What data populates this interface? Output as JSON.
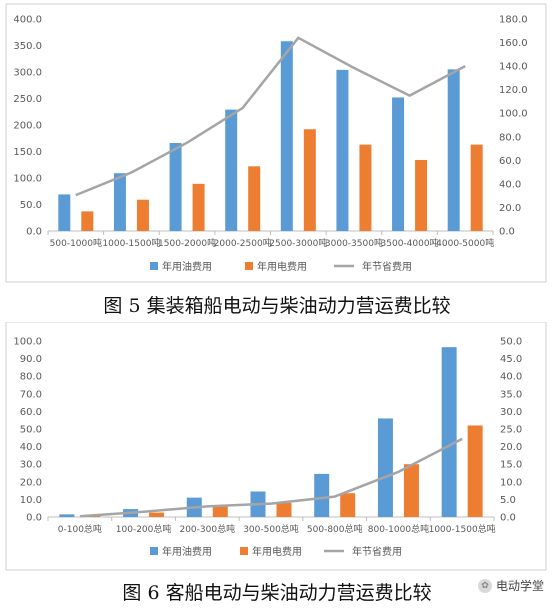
{
  "figure1": {
    "caption": "图 5  集装箱船电动与柴油动力营运费比较",
    "chart_data": {
      "type": "bar",
      "categories": [
        "500-1000吨",
        "1000-1500吨",
        "1500-2000吨",
        "2000-2500吨",
        "2500-3000吨",
        "3000-3500吨",
        "3500-4000吨",
        "4000-5000吨"
      ],
      "series": [
        {
          "name": "年用油费用",
          "type": "bar",
          "axis": "left",
          "color": "#5b9bd5",
          "values": [
            69,
            109,
            166,
            229,
            358,
            304,
            252,
            305
          ]
        },
        {
          "name": "年用电费用",
          "type": "bar",
          "axis": "left",
          "color": "#ed7d31",
          "values": [
            37,
            59,
            89,
            122,
            192,
            163,
            134,
            163
          ]
        },
        {
          "name": "年节省费用",
          "type": "line",
          "axis": "right",
          "color": "#a5a5a5",
          "values": [
            30.5,
            49.7,
            75.0,
            104.5,
            164.0,
            138.5,
            115.0,
            140.0
          ]
        }
      ],
      "ylim_left": [
        0,
        400
      ],
      "yticks_left": [
        "0.0",
        "50.0",
        "100.0",
        "150.0",
        "200.0",
        "250.0",
        "300.0",
        "350.0",
        "400.0"
      ],
      "ylim_right": [
        0,
        180
      ],
      "yticks_right": [
        "0.0",
        "20.0",
        "40.0",
        "60.0",
        "80.0",
        "100.0",
        "120.0",
        "140.0",
        "160.0",
        "180.0"
      ],
      "grid": false,
      "legend": "bottom"
    }
  },
  "figure2": {
    "caption": "图 6  客船电动与柴油动力营运费比较",
    "chart_data": {
      "type": "bar",
      "categories": [
        "0-100总吨",
        "100-200总吨",
        "200-300总吨",
        "300-500总吨",
        "500-800总吨",
        "800-1000总吨",
        "1000-1500总吨"
      ],
      "series": [
        {
          "name": "年用油费用",
          "type": "bar",
          "axis": "left",
          "color": "#5b9bd5",
          "values": [
            1.5,
            4.5,
            11.0,
            14.5,
            24.5,
            56.0,
            96.5
          ]
        },
        {
          "name": "年用电费用",
          "type": "bar",
          "axis": "left",
          "color": "#ed7d31",
          "values": [
            0.8,
            2.5,
            6.0,
            8.0,
            13.5,
            30.0,
            52.0
          ]
        },
        {
          "name": "年节省费用",
          "type": "line",
          "axis": "right",
          "color": "#a5a5a5",
          "values": [
            0.2,
            1.5,
            3.0,
            3.8,
            5.8,
            12.8,
            22.2
          ]
        }
      ],
      "ylim_left": [
        0,
        100
      ],
      "yticks_left": [
        "0.0",
        "10.0",
        "20.0",
        "30.0",
        "40.0",
        "50.0",
        "60.0",
        "70.0",
        "80.0",
        "90.0",
        "100.0"
      ],
      "ylim_right": [
        0,
        50
      ],
      "yticks_right": [
        "0.0",
        "5.0",
        "10.0",
        "15.0",
        "20.0",
        "25.0",
        "30.0",
        "35.0",
        "40.0",
        "45.0",
        "50.0"
      ],
      "grid": false,
      "legend": "bottom"
    }
  },
  "watermark": {
    "text": "电动学堂"
  }
}
